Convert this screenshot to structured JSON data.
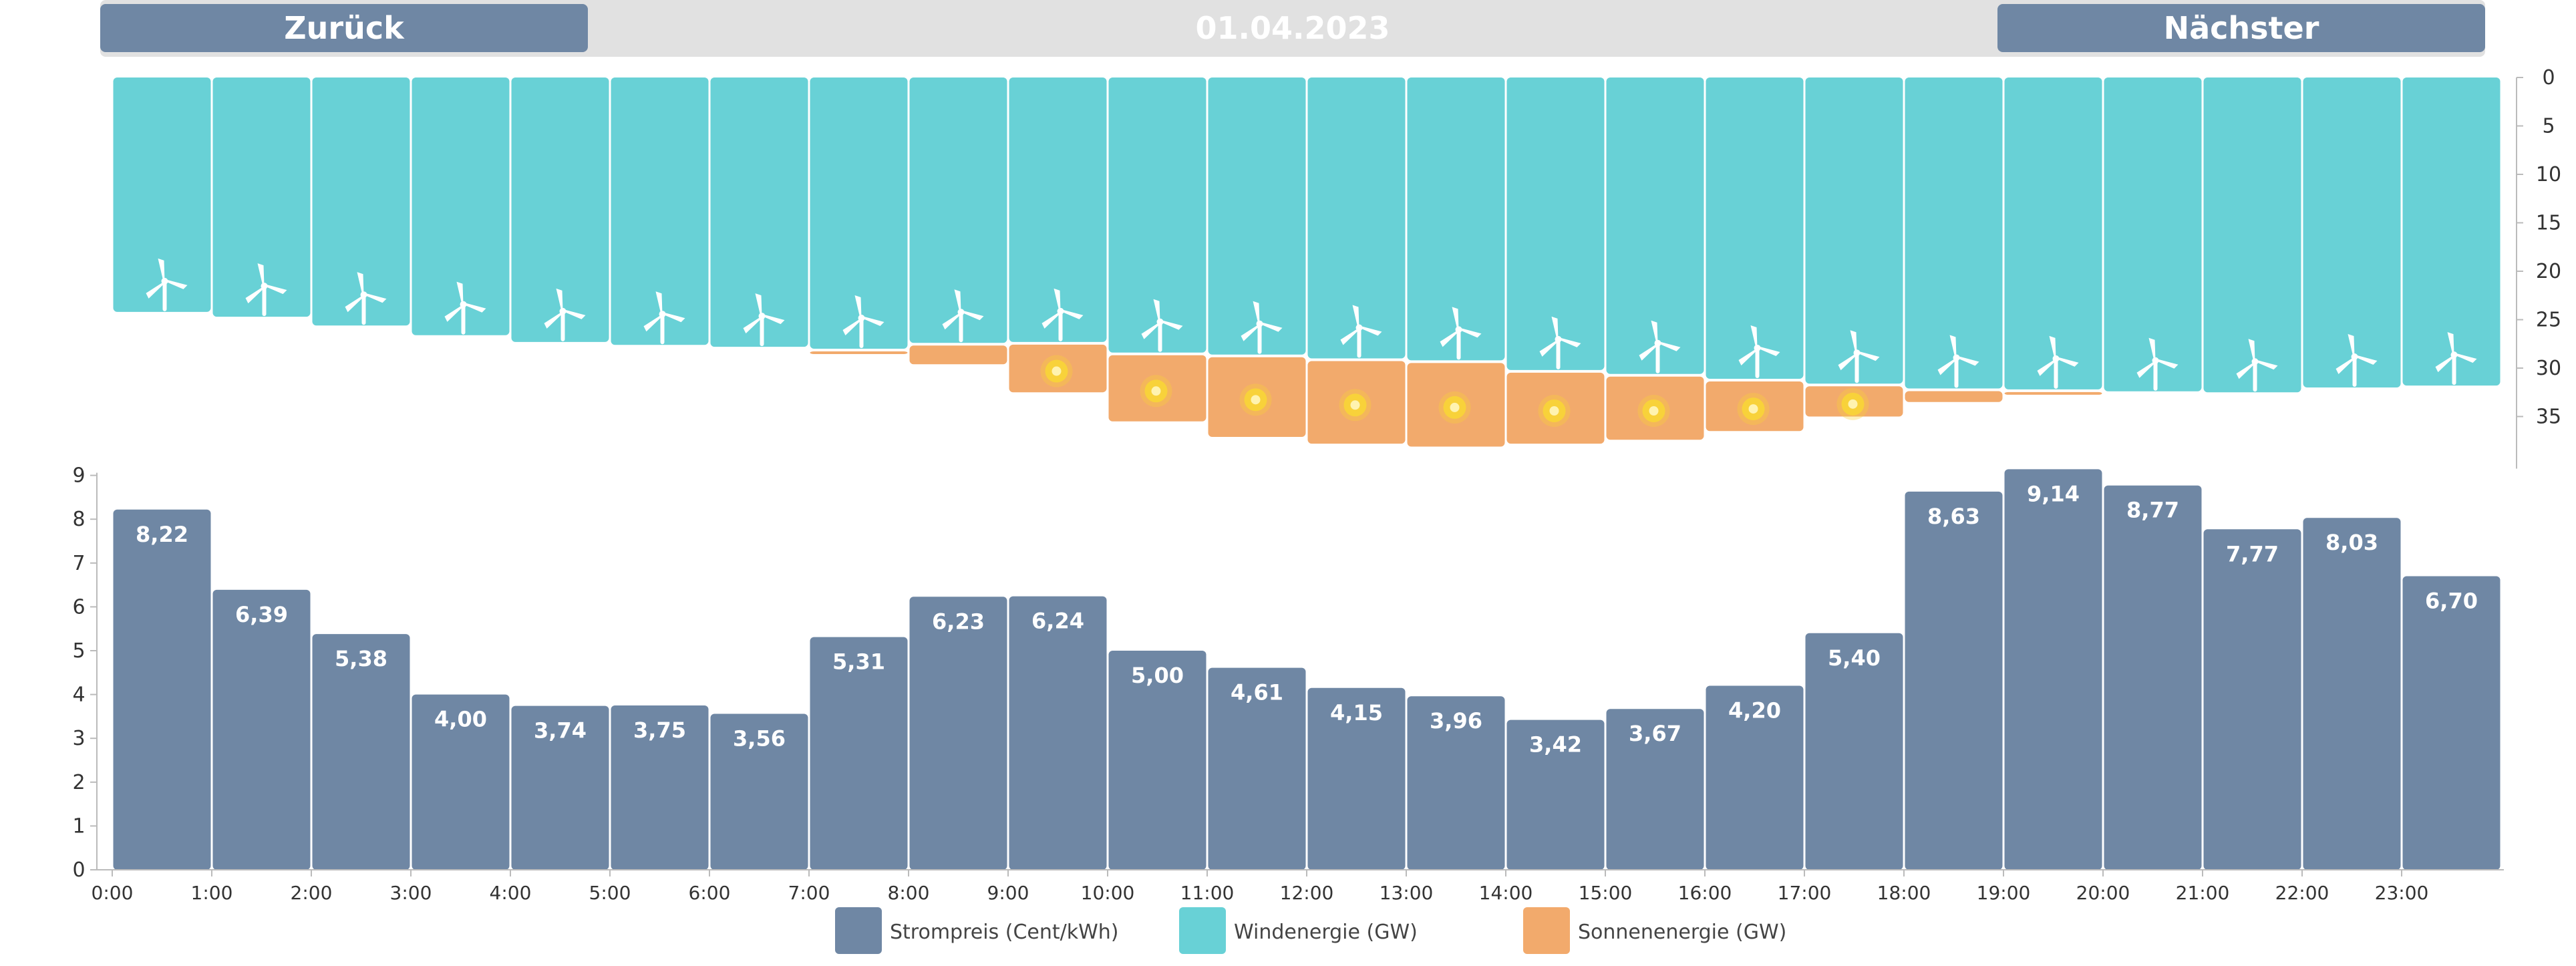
{
  "nav": {
    "prev_label": "Zurück",
    "date": "01.04.2023",
    "next_label": "Nächster"
  },
  "colors": {
    "price": "#6f87a4",
    "wind": "#68d1d6",
    "sun": "#f2aa6c",
    "sun_core": "#f8d23a",
    "nav_bg": "#e1e1e1"
  },
  "legend": [
    {
      "label": "Strompreis (Cent/kWh)",
      "color": "#6f87a4"
    },
    {
      "label": "Windenergie (GW)",
      "color": "#68d1d6"
    },
    {
      "label": "Sonnenenergie (GW)",
      "color": "#f2aa6c"
    }
  ],
  "chart_data": [
    {
      "type": "bar",
      "orientation": "downward-stacked",
      "categories": [
        "0:00",
        "1:00",
        "2:00",
        "3:00",
        "4:00",
        "5:00",
        "6:00",
        "7:00",
        "8:00",
        "9:00",
        "10:00",
        "11:00",
        "12:00",
        "13:00",
        "14:00",
        "15:00",
        "16:00",
        "17:00",
        "18:00",
        "19:00",
        "20:00",
        "21:00",
        "22:00",
        "23:00"
      ],
      "series": [
        {
          "name": "Windenergie (GW)",
          "icon": "wind-turbine-icon",
          "values": [
            24.2,
            24.7,
            25.6,
            26.6,
            27.3,
            27.6,
            27.8,
            28.0,
            27.4,
            27.3,
            28.4,
            28.6,
            29.0,
            29.2,
            30.2,
            30.6,
            31.1,
            31.6,
            32.1,
            32.2,
            32.4,
            32.5,
            32.0,
            31.8
          ]
        },
        {
          "name": "Sonnenenergie (GW)",
          "icon": "sun-icon",
          "values": [
            0,
            0,
            0,
            0,
            0,
            0,
            0,
            0.5,
            2.2,
            5.2,
            7.1,
            8.5,
            8.8,
            8.9,
            7.6,
            6.8,
            5.4,
            3.4,
            1.4,
            0.3,
            0,
            0,
            0,
            0
          ]
        }
      ],
      "ylim": [
        0,
        39
      ],
      "yticks": [
        0,
        5,
        10,
        15,
        20,
        25,
        30,
        35
      ],
      "axis_side": "right",
      "grid": false
    },
    {
      "type": "bar",
      "categories": [
        "0:00",
        "1:00",
        "2:00",
        "3:00",
        "4:00",
        "5:00",
        "6:00",
        "7:00",
        "8:00",
        "9:00",
        "10:00",
        "11:00",
        "12:00",
        "13:00",
        "14:00",
        "15:00",
        "16:00",
        "17:00",
        "18:00",
        "19:00",
        "20:00",
        "21:00",
        "22:00",
        "23:00"
      ],
      "series": [
        {
          "name": "Strompreis (Cent/kWh)",
          "values": [
            8.22,
            6.39,
            5.38,
            4.0,
            3.74,
            3.75,
            3.56,
            5.31,
            6.23,
            6.24,
            5.0,
            4.61,
            4.15,
            3.96,
            3.42,
            3.67,
            4.2,
            5.4,
            8.63,
            9.14,
            8.77,
            7.77,
            8.03,
            6.7
          ],
          "labels": [
            "8,22",
            "6,39",
            "5,38",
            "4,00",
            "3,74",
            "3,75",
            "3,56",
            "5,31",
            "6,23",
            "6,24",
            "5,00",
            "4,61",
            "4,15",
            "3,96",
            "3,42",
            "3,67",
            "4,20",
            "5,40",
            "8,63",
            "9,14",
            "8,77",
            "7,77",
            "8,03",
            "6,70"
          ]
        }
      ],
      "ylim": [
        0,
        9
      ],
      "yticks": [
        0,
        1,
        2,
        3,
        4,
        5,
        6,
        7,
        8,
        9
      ],
      "grid": false,
      "legend_position": "bottom-center"
    }
  ]
}
